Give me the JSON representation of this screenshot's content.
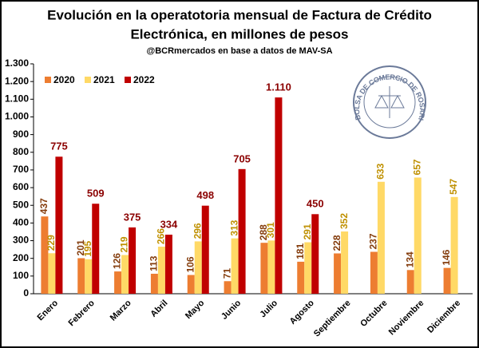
{
  "chart_data": {
    "type": "bar",
    "title": "Evolución en la operatotoria mensual de Factura de Crédito",
    "title_line2": "Electrónica, en millones de pesos",
    "subtitle": "@BCRmercados en base a datos de MAV-SA",
    "categories": [
      "Enero",
      "Febrero",
      "Marzo",
      "Abril",
      "Mayo",
      "Junio",
      "Julio",
      "Agosto",
      "Septiembre",
      "Octubre",
      "Noviembre",
      "Diciembre"
    ],
    "series": [
      {
        "name": "2020",
        "color": "#ed7d31",
        "label_color": "#843c0c",
        "values": [
          437,
          201,
          126,
          113,
          106,
          71,
          288,
          181,
          228,
          237,
          134,
          146
        ]
      },
      {
        "name": "2021",
        "color": "#ffd966",
        "label_color": "#bf9000",
        "values": [
          229,
          195,
          219,
          266,
          296,
          313,
          301,
          291,
          352,
          633,
          657,
          547
        ]
      },
      {
        "name": "2022",
        "color": "#c00000",
        "label_color": "#8b0000",
        "values": [
          775,
          509,
          375,
          334,
          498,
          705,
          1110,
          450,
          null,
          null,
          null,
          null
        ],
        "value_labels": [
          "775",
          "509",
          "375",
          "334",
          "498",
          "705",
          "1.110",
          "450",
          null,
          null,
          null,
          null
        ]
      }
    ],
    "ylim": [
      0,
      1300
    ],
    "yticks": [
      0,
      100,
      200,
      300,
      400,
      500,
      600,
      700,
      800,
      900,
      {
        "value": 1000,
        "label": "1.000"
      },
      {
        "value": 1100,
        "label": "1.100"
      },
      {
        "value": 1200,
        "label": "1.200"
      },
      {
        "value": 1300,
        "label": "1.300"
      }
    ],
    "legend": "top-left"
  },
  "logo": {
    "text": "BOLSA DE COMERCIO DE ROSARIO"
  }
}
